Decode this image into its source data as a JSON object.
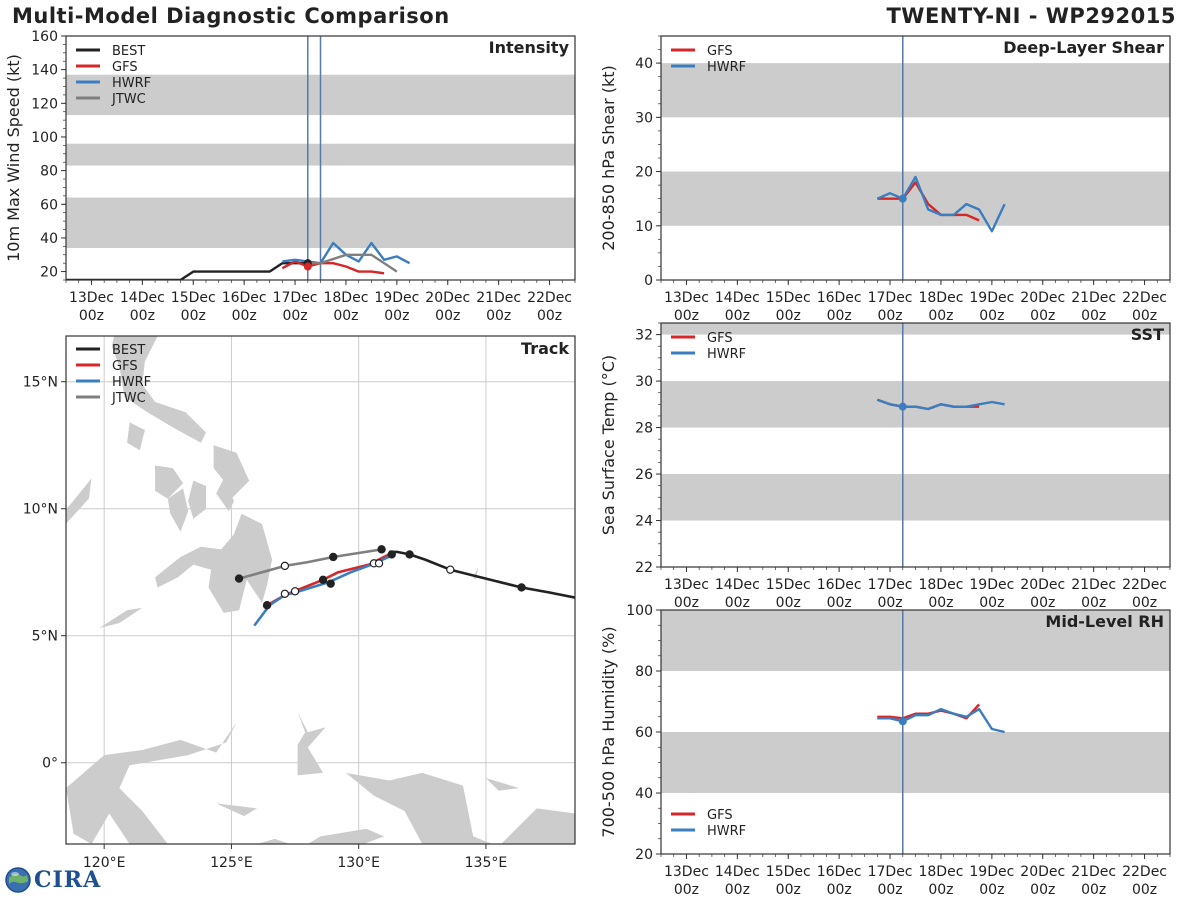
{
  "header": {
    "title": "Multi-Model Diagnostic Comparison",
    "storm_id": "TWENTY-NI - WP292015"
  },
  "logo": {
    "text": "CIRA"
  },
  "colors": {
    "BEST": "#222222",
    "GFS": "#d62728",
    "HWRF": "#3a7ebf",
    "JTWC": "#7f7f7f",
    "band": "#cccccc",
    "vline": "#5a78a8",
    "land": "#cccccc",
    "grid": "#cccccc"
  },
  "time_axis": {
    "labels": [
      "13Dec\n00z",
      "14Dec\n00z",
      "15Dec\n00z",
      "16Dec\n00z",
      "17Dec\n00z",
      "18Dec\n00z",
      "19Dec\n00z",
      "20Dec\n00z",
      "21Dec\n00z",
      "22Dec\n00z"
    ],
    "start_day": 12.5,
    "end_day": 22.5
  },
  "chart_data": [
    {
      "id": "intensity",
      "type": "line",
      "title": "Intensity",
      "ylabel": "10m Max Wind Speed (kt)",
      "ylim": [
        15,
        160
      ],
      "yticks": [
        20,
        40,
        60,
        80,
        100,
        120,
        140,
        160
      ],
      "bands": [
        [
          34,
          64
        ],
        [
          83,
          96
        ],
        [
          113,
          137
        ]
      ],
      "vlines": [
        17.25,
        17.5
      ],
      "legend": [
        "BEST",
        "GFS",
        "HWRF",
        "JTWC"
      ],
      "legend_position": "top-left",
      "x_units": "days of December 2015",
      "series": [
        {
          "name": "BEST",
          "x": [
            12.5,
            14.75,
            15.0,
            16.5,
            16.75,
            17.5
          ],
          "y": [
            15,
            15,
            20,
            20,
            25,
            25
          ]
        },
        {
          "name": "GFS",
          "x": [
            16.75,
            17.0,
            17.25,
            17.5,
            17.75,
            18.0,
            18.25,
            18.5,
            18.75
          ],
          "y": [
            22,
            26,
            23,
            25,
            25,
            23,
            20,
            20,
            19
          ]
        },
        {
          "name": "HWRF",
          "x": [
            16.75,
            17.0,
            17.25,
            17.5,
            17.75,
            18.0,
            18.25,
            18.5,
            18.75,
            19.0,
            19.25
          ],
          "y": [
            26,
            27,
            26,
            25,
            37,
            30,
            26,
            37,
            27,
            29,
            25
          ]
        },
        {
          "name": "JTWC",
          "x": [
            17.25,
            17.5,
            18.0,
            18.5,
            19.0
          ],
          "y": [
            25,
            25,
            30,
            30,
            20
          ]
        }
      ],
      "markers": [
        {
          "series": "BEST",
          "x": 17.25,
          "y": 25
        },
        {
          "series": "GFS",
          "x": 17.25,
          "y": 23
        }
      ]
    },
    {
      "id": "shear",
      "type": "line",
      "title": "Deep-Layer Shear",
      "ylabel": "200-850 hPa Shear (kt)",
      "ylim": [
        0,
        45
      ],
      "yticks": [
        0,
        10,
        20,
        30,
        40
      ],
      "bands": [
        [
          10,
          20
        ],
        [
          30,
          40
        ]
      ],
      "vlines": [
        17.25
      ],
      "legend": [
        "GFS",
        "HWRF"
      ],
      "legend_position": "top-left",
      "series": [
        {
          "name": "GFS",
          "x": [
            16.75,
            17.0,
            17.25,
            17.5,
            17.75,
            18.0,
            18.25,
            18.5,
            18.75
          ],
          "y": [
            15,
            15,
            15,
            18,
            14,
            12,
            12,
            12,
            11
          ]
        },
        {
          "name": "HWRF",
          "x": [
            16.75,
            17.0,
            17.25,
            17.5,
            17.75,
            18.0,
            18.25,
            18.5,
            18.75,
            19.0,
            19.25
          ],
          "y": [
            15,
            16,
            15,
            19,
            13,
            12,
            12,
            14,
            13,
            9,
            14
          ]
        }
      ],
      "markers": [
        {
          "series": "HWRF",
          "x": 17.25,
          "y": 15
        }
      ]
    },
    {
      "id": "sst",
      "type": "line",
      "title": "SST",
      "ylabel": "Sea Surface Temp (°C)",
      "ylim": [
        22,
        32.5
      ],
      "yticks": [
        22,
        24,
        26,
        28,
        30,
        32
      ],
      "bands": [
        [
          24,
          26
        ],
        [
          28,
          30
        ],
        [
          32,
          32.5
        ]
      ],
      "vlines": [
        17.25
      ],
      "legend": [
        "GFS",
        "HWRF"
      ],
      "legend_position": "top-left",
      "series": [
        {
          "name": "GFS",
          "x": [
            16.75,
            17.0,
            17.25,
            17.5,
            17.75,
            18.0,
            18.25,
            18.5,
            18.75
          ],
          "y": [
            29.2,
            29.0,
            28.9,
            28.9,
            28.8,
            29.0,
            28.9,
            28.9,
            28.9
          ]
        },
        {
          "name": "HWRF",
          "x": [
            16.75,
            17.0,
            17.25,
            17.5,
            17.75,
            18.0,
            18.25,
            18.5,
            18.75,
            19.0,
            19.25
          ],
          "y": [
            29.2,
            29.0,
            28.9,
            28.9,
            28.8,
            29.0,
            28.9,
            28.9,
            29.0,
            29.1,
            29.0
          ]
        }
      ],
      "markers": [
        {
          "series": "HWRF",
          "x": 17.25,
          "y": 28.9
        }
      ]
    },
    {
      "id": "rh",
      "type": "line",
      "title": "Mid-Level RH",
      "ylabel": "700-500 hPa Humidity (%)",
      "ylim": [
        20,
        100
      ],
      "yticks": [
        20,
        40,
        60,
        80,
        100
      ],
      "bands": [
        [
          40,
          60
        ],
        [
          80,
          100
        ]
      ],
      "vlines": [
        17.25
      ],
      "legend": [
        "GFS",
        "HWRF"
      ],
      "legend_position": "bottom-left",
      "series": [
        {
          "name": "GFS",
          "x": [
            16.75,
            17.0,
            17.25,
            17.5,
            17.75,
            18.0,
            18.25,
            18.5,
            18.75
          ],
          "y": [
            65,
            65,
            64.5,
            66,
            66,
            67,
            66,
            64.5,
            69
          ]
        },
        {
          "name": "HWRF",
          "x": [
            16.75,
            17.0,
            17.25,
            17.5,
            17.75,
            18.0,
            18.25,
            18.5,
            18.75,
            19.0,
            19.25
          ],
          "y": [
            64.5,
            64.5,
            63.5,
            65.5,
            65.5,
            67.5,
            66,
            65,
            67.5,
            61,
            60
          ]
        }
      ],
      "markers": [
        {
          "series": "HWRF",
          "x": 17.25,
          "y": 63.5
        }
      ]
    },
    {
      "id": "track",
      "type": "scatter",
      "title": "Track",
      "xlim": [
        118.5,
        138.5
      ],
      "ylim": [
        -3.2,
        16.8
      ],
      "xticks": [
        120,
        125,
        130,
        135
      ],
      "xtick_labels": [
        "120°E",
        "125°E",
        "130°E",
        "135°E"
      ],
      "yticks": [
        0,
        5,
        10,
        15
      ],
      "ytick_labels": [
        "0°",
        "5°N",
        "10°N",
        "15°N"
      ],
      "legend": [
        "BEST",
        "GFS",
        "HWRF",
        "JTWC"
      ],
      "legend_position": "top-left",
      "series": [
        {
          "name": "BEST",
          "lon": [
            138.5,
            137.5,
            136.4,
            135.0,
            133.6,
            132.6,
            132.0,
            131.5,
            131.2
          ],
          "lat": [
            6.5,
            6.7,
            6.9,
            7.25,
            7.6,
            8.0,
            8.2,
            8.3,
            8.3
          ]
        },
        {
          "name": "GFS",
          "lon": [
            131.4,
            130.8,
            130.4,
            129.2,
            128.6,
            127.6,
            127.1,
            126.4
          ],
          "lat": [
            8.3,
            8.0,
            7.8,
            7.5,
            7.2,
            6.8,
            6.6,
            6.2
          ]
        },
        {
          "name": "HWRF",
          "lon": [
            131.4,
            130.5,
            129.7,
            128.8,
            127.5,
            127.1,
            126.5,
            125.9
          ],
          "lat": [
            8.2,
            7.8,
            7.5,
            7.1,
            6.7,
            6.6,
            6.2,
            5.4
          ]
        },
        {
          "name": "JTWC",
          "lon": [
            130.9,
            129.0,
            128.0,
            127.1,
            125.3
          ],
          "lat": [
            8.4,
            8.1,
            7.9,
            7.75,
            7.25
          ]
        }
      ],
      "points": [
        {
          "series": "BEST",
          "lon": 132.0,
          "lat": 8.2,
          "fill": "filled"
        },
        {
          "series": "BEST",
          "lon": 133.6,
          "lat": 7.6,
          "fill": "open"
        },
        {
          "series": "BEST",
          "lon": 136.4,
          "lat": 6.9,
          "fill": "filled"
        },
        {
          "series": "JTWC",
          "lon": 130.9,
          "lat": 8.4,
          "fill": "filled"
        },
        {
          "series": "JTWC",
          "lon": 129.0,
          "lat": 8.1,
          "fill": "filled"
        },
        {
          "series": "JTWC",
          "lon": 127.1,
          "lat": 7.75,
          "fill": "open"
        },
        {
          "series": "JTWC",
          "lon": 125.3,
          "lat": 7.25,
          "fill": "filled"
        },
        {
          "series": "GFS",
          "lon": 128.6,
          "lat": 7.2,
          "fill": "filled"
        },
        {
          "series": "GFS",
          "lon": 126.4,
          "lat": 6.2,
          "fill": "filled"
        },
        {
          "series": "GFS",
          "lon": 130.6,
          "lat": 7.85,
          "fill": "open"
        },
        {
          "series": "HWRF",
          "lon": 128.9,
          "lat": 7.05,
          "fill": "filled"
        },
        {
          "series": "HWRF",
          "lon": 127.1,
          "lat": 6.65,
          "fill": "open"
        },
        {
          "series": "HWRF",
          "lon": 127.5,
          "lat": 6.75,
          "fill": "open"
        },
        {
          "series": "HWRF",
          "lon": 130.8,
          "lat": 7.85,
          "fill": "open"
        },
        {
          "series": "HWRF",
          "lon": 131.3,
          "lat": 8.2,
          "fill": "filled"
        }
      ]
    }
  ]
}
